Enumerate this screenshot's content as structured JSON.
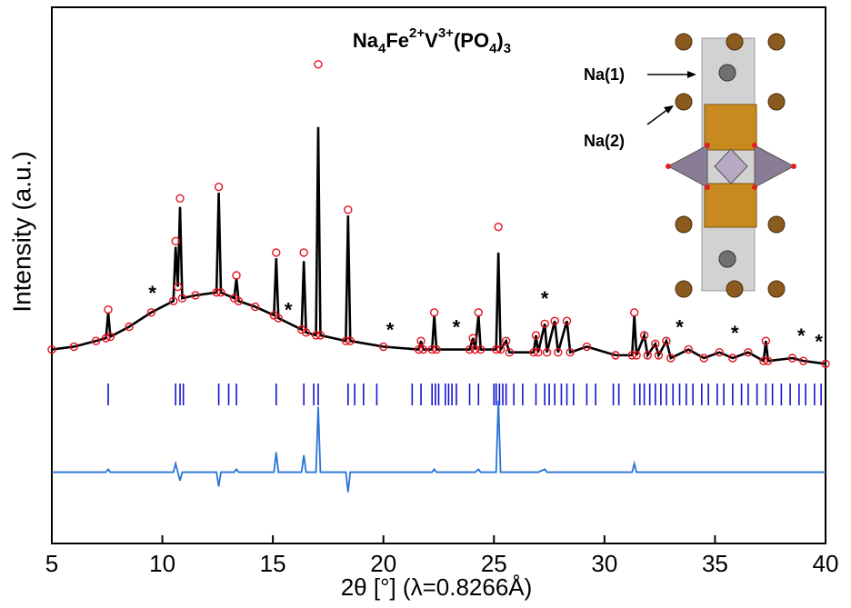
{
  "chart_data": {
    "type": "line",
    "title_parts": [
      "Na",
      "4",
      "Fe",
      "2+",
      "V",
      "3+",
      "(PO",
      "4",
      ")",
      "3"
    ],
    "xlabel": "2θ [°] (λ=0.8266Å)",
    "ylabel": "Intensity (a.u.)",
    "xlim": [
      5,
      40
    ],
    "xticks": [
      5,
      10,
      15,
      20,
      25,
      30,
      35,
      40
    ],
    "ylim": [
      -68,
      120
    ],
    "x": [
      5,
      6,
      7,
      7.45,
      7.55,
      7.65,
      8.5,
      9.5,
      10.5,
      10.6,
      10.7,
      10.8,
      10.9,
      11.5,
      12.45,
      12.55,
      12.65,
      13.25,
      13.35,
      13.45,
      14.2,
      15.05,
      15.15,
      15.25,
      16.3,
      16.4,
      16.5,
      16.95,
      17.05,
      17.15,
      18.3,
      18.4,
      18.5,
      20,
      21.6,
      21.7,
      21.8,
      22.2,
      22.3,
      22.4,
      23.9,
      24.05,
      24.15,
      24.3,
      24.4,
      25.1,
      25.2,
      25.3,
      25.55,
      25.7,
      26.8,
      26.9,
      27.0,
      27.3,
      27.4,
      27.75,
      27.9,
      28.3,
      28.45,
      29.2,
      30.5,
      31.25,
      31.35,
      31.45,
      31.8,
      31.95,
      32.3,
      32.45,
      32.8,
      33,
      33.8,
      34.5,
      35.2,
      35.8,
      36.5,
      37.2,
      37.3,
      37.4,
      38.5,
      39,
      40
    ],
    "series": [
      {
        "color": "#e3101e",
        "values": [
          0,
          1,
          3,
          4,
          14,
          4.5,
          8,
          13,
          17,
          38,
          22,
          53,
          18,
          19,
          20,
          57,
          20,
          18,
          26,
          17,
          15,
          12,
          34,
          11,
          7,
          34,
          6,
          5,
          100,
          5,
          3,
          49,
          3,
          1,
          0,
          3,
          0,
          0,
          13,
          0,
          0,
          4,
          0,
          13,
          0,
          0,
          43,
          0,
          3,
          -1,
          -1,
          5,
          -1,
          9,
          -1,
          10,
          -1,
          10,
          -1,
          1,
          -2,
          -2,
          13,
          -2,
          5,
          -2,
          2,
          -2,
          3,
          -3,
          0,
          -3,
          -1,
          -3,
          -1,
          -4,
          3,
          -4,
          -3,
          -4,
          -5
        ]
      },
      {
        "color": "#000000",
        "values": [
          0,
          1,
          3,
          4,
          13,
          4.5,
          8,
          13,
          17,
          36,
          22,
          50,
          18,
          19,
          20,
          55,
          20,
          18,
          25,
          17,
          15,
          12,
          32,
          11,
          7,
          31,
          6,
          5,
          78,
          5,
          3,
          47,
          3,
          1,
          0,
          3,
          0,
          0,
          12,
          0,
          0,
          4,
          0,
          12,
          0,
          0,
          34,
          0,
          3,
          -1,
          -1,
          5,
          -1,
          9,
          -1,
          10,
          -1,
          10,
          -1,
          1,
          -2,
          -2,
          12,
          -2,
          5,
          -2,
          2,
          -2,
          3,
          -3,
          0,
          -3,
          -1,
          -3,
          -1,
          -4,
          3,
          -4,
          -3,
          -4,
          -5
        ]
      },
      {
        "color": "#2a74d6",
        "values": [
          -43,
          -43,
          -43,
          -43,
          -42,
          -43,
          -43,
          -43,
          -43,
          -40,
          -43,
          -46,
          -43,
          -43,
          -43,
          -48,
          -43,
          -43,
          -42,
          -43,
          -43,
          -43,
          -36,
          -43,
          -43,
          -37,
          -43,
          -43,
          -20,
          -43,
          -43,
          -50,
          -43,
          -43,
          -43,
          -43,
          -43,
          -43,
          -42,
          -43,
          -43,
          -43,
          -43,
          -42,
          -43,
          -43,
          -18,
          -43,
          -43,
          -43,
          -43,
          -43,
          -43,
          -42,
          -43,
          -43,
          -43,
          -43,
          -43,
          -43,
          -43,
          -43,
          -40,
          -43,
          -43,
          -43,
          -43,
          -43,
          -43,
          -43,
          -43,
          -43,
          -43,
          -43,
          -43,
          -43,
          -43,
          -43,
          -43,
          -43,
          -43
        ]
      }
    ],
    "bragg_color": "#1414d2",
    "bragg_positions": [
      7.55,
      10.6,
      10.8,
      10.95,
      12.55,
      13.0,
      13.35,
      15.15,
      16.4,
      16.85,
      17.05,
      18.4,
      18.7,
      19.1,
      19.7,
      21.3,
      21.7,
      22.2,
      22.35,
      22.5,
      22.8,
      22.95,
      23.1,
      23.3,
      23.9,
      24.3,
      25.0,
      25.1,
      25.25,
      25.4,
      25.55,
      25.9,
      26.3,
      26.9,
      27.3,
      27.5,
      27.75,
      28.05,
      28.3,
      28.6,
      29.2,
      29.6,
      30.4,
      30.65,
      31.35,
      31.6,
      31.8,
      32.05,
      32.3,
      32.55,
      32.8,
      33.1,
      33.4,
      33.7,
      34.0,
      34.4,
      34.7,
      35.1,
      35.4,
      35.8,
      36.2,
      36.5,
      36.9,
      37.3,
      37.6,
      38.0,
      38.4,
      38.8,
      39.1,
      39.5,
      39.8
    ],
    "annotations": [
      {
        "x": 9.55,
        "y": 18,
        "label": "*"
      },
      {
        "x": 15.7,
        "y": 12,
        "label": "*"
      },
      {
        "x": 20.3,
        "y": 5,
        "label": "*"
      },
      {
        "x": 23.3,
        "y": 6,
        "label": "*"
      },
      {
        "x": 27.3,
        "y": 16,
        "label": "*"
      },
      {
        "x": 33.4,
        "y": 6,
        "label": "*"
      },
      {
        "x": 35.9,
        "y": 4,
        "label": "*"
      },
      {
        "x": 38.9,
        "y": 3,
        "label": "*"
      },
      {
        "x": 39.7,
        "y": 1,
        "label": "*"
      }
    ],
    "inset_labels": [
      "Na(1)",
      "Na(2)"
    ]
  }
}
